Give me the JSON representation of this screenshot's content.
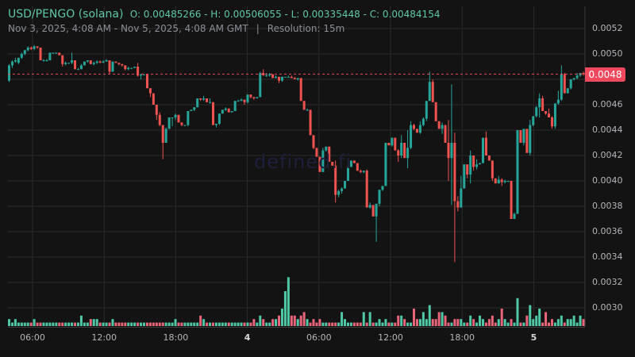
{
  "header": {
    "pair": "USD/PENGO (solana)",
    "ohlc": "O: 0.00485266 - H: 0.00506055 - L: 0.00335448 - C: 0.00484154",
    "range": "Nov 3, 2025, 4:08 AM - Nov 5, 2025, 4:08 AM GMT",
    "separator": "|",
    "resolution": "Resolution: 15m"
  },
  "watermark": "defined.fi",
  "current_price_label": "0.0048",
  "colors": {
    "background": "#131313",
    "up": "#26a69a",
    "down": "#ef5350",
    "vol_up": "#4fc8a6",
    "vol_down": "#e8657a",
    "grid": "#2b2b2b",
    "price_line": "#f0485c",
    "title": "#5fc8a8"
  },
  "chart_data": {
    "type": "candlestick",
    "title": "USD/PENGO (solana)",
    "resolution": "15m",
    "xlabel": "",
    "ylabel": "",
    "ylim": [
      0.00287,
      0.00545
    ],
    "y_ticks": [
      "0.0052",
      "0.0050",
      "0.0048",
      "0.0046",
      "0.0044",
      "0.0042",
      "0.0040",
      "0.0038",
      "0.0036",
      "0.0034",
      "0.0032",
      "0.0030"
    ],
    "x_ticks": [
      {
        "label": "06:00",
        "bold": false
      },
      {
        "label": "12:00",
        "bold": false
      },
      {
        "label": "18:00",
        "bold": false
      },
      {
        "label": "4",
        "bold": true
      },
      {
        "label": "06:00",
        "bold": false
      },
      {
        "label": "12:00",
        "bold": false
      },
      {
        "label": "18:00",
        "bold": false
      },
      {
        "label": "5",
        "bold": true
      }
    ],
    "current_price": 0.00484154,
    "grid": true,
    "candles": [
      [
        0.00479,
        0.00492,
        0.00478,
        0.00491
      ],
      [
        0.00491,
        0.00495,
        0.00489,
        0.00494
      ],
      [
        0.00494,
        0.00497,
        0.00493,
        0.00495
      ],
      [
        0.00493,
        0.00497,
        0.00492,
        0.00497
      ],
      [
        0.00497,
        0.00501,
        0.00496,
        0.005
      ],
      [
        0.005,
        0.00503,
        0.00499,
        0.00503
      ],
      [
        0.00503,
        0.00506,
        0.00502,
        0.00505
      ],
      [
        0.00505,
        0.00506,
        0.00503,
        0.00504
      ],
      [
        0.00504,
        0.00507,
        0.00503,
        0.00506
      ],
      [
        0.00506,
        0.00506,
        0.00504,
        0.00505
      ],
      [
        0.00505,
        0.00505,
        0.00495,
        0.00495
      ],
      [
        0.00495,
        0.00496,
        0.00494,
        0.00495
      ],
      [
        0.00495,
        0.00496,
        0.00494,
        0.00495
      ],
      [
        0.00495,
        0.00501,
        0.00495,
        0.00501
      ],
      [
        0.00501,
        0.00501,
        0.005,
        0.00501
      ],
      [
        0.00501,
        0.00501,
        0.005,
        0.00501
      ],
      [
        0.00501,
        0.00501,
        0.00499,
        0.00499
      ],
      [
        0.00499,
        0.00499,
        0.0049,
        0.00492
      ],
      [
        0.00492,
        0.00494,
        0.00491,
        0.00493
      ],
      [
        0.00493,
        0.00493,
        0.00492,
        0.00493
      ],
      [
        0.00493,
        0.00501,
        0.00492,
        0.00495
      ],
      [
        0.00495,
        0.00495,
        0.00488,
        0.00488
      ],
      [
        0.00488,
        0.00489,
        0.00488,
        0.00488
      ],
      [
        0.00488,
        0.00492,
        0.00488,
        0.00491
      ],
      [
        0.00491,
        0.00494,
        0.00491,
        0.00494
      ],
      [
        0.00494,
        0.00495,
        0.00493,
        0.00495
      ],
      [
        0.00495,
        0.00495,
        0.00492,
        0.00492
      ],
      [
        0.00492,
        0.00494,
        0.00491,
        0.00493
      ],
      [
        0.00493,
        0.00495,
        0.00492,
        0.00494
      ],
      [
        0.00494,
        0.00495,
        0.00493,
        0.00493
      ],
      [
        0.00493,
        0.00495,
        0.00493,
        0.00494
      ],
      [
        0.00494,
        0.00496,
        0.00494,
        0.00495
      ],
      [
        0.00495,
        0.00495,
        0.00484,
        0.00486
      ],
      [
        0.00486,
        0.00494,
        0.00486,
        0.00494
      ],
      [
        0.00494,
        0.00494,
        0.00493,
        0.00493
      ],
      [
        0.00493,
        0.00493,
        0.00491,
        0.00492
      ],
      [
        0.00492,
        0.00492,
        0.0049,
        0.00491
      ],
      [
        0.00491,
        0.00491,
        0.00487,
        0.00488
      ],
      [
        0.00488,
        0.0049,
        0.00487,
        0.00489
      ],
      [
        0.00489,
        0.00489,
        0.00488,
        0.00489
      ],
      [
        0.00489,
        0.0049,
        0.00489,
        0.0049
      ],
      [
        0.0049,
        0.00493,
        0.00482,
        0.00483
      ],
      [
        0.00483,
        0.00484,
        0.0048,
        0.00484
      ],
      [
        0.00484,
        0.00484,
        0.00483,
        0.00484
      ],
      [
        0.00484,
        0.00484,
        0.00473,
        0.00473
      ],
      [
        0.00473,
        0.00473,
        0.00466,
        0.00469
      ],
      [
        0.00469,
        0.00469,
        0.0046,
        0.0046
      ],
      [
        0.0046,
        0.0046,
        0.00448,
        0.00452
      ],
      [
        0.00452,
        0.00454,
        0.00443,
        0.00444
      ],
      [
        0.00444,
        0.00444,
        0.00417,
        0.0043
      ],
      [
        0.0043,
        0.00442,
        0.0043,
        0.00441
      ],
      [
        0.00441,
        0.0045,
        0.00441,
        0.0045
      ],
      [
        0.0045,
        0.0045,
        0.00443,
        0.0045
      ],
      [
        0.0045,
        0.00453,
        0.00448,
        0.00452
      ],
      [
        0.00452,
        0.00452,
        0.00446,
        0.00446
      ],
      [
        0.00446,
        0.00446,
        0.00443,
        0.00444
      ],
      [
        0.00444,
        0.00444,
        0.00443,
        0.00444
      ],
      [
        0.00444,
        0.00455,
        0.00443,
        0.00455
      ],
      [
        0.00455,
        0.00456,
        0.00455,
        0.00456
      ],
      [
        0.00456,
        0.00458,
        0.00455,
        0.00458
      ],
      [
        0.00458,
        0.00465,
        0.00458,
        0.00465
      ],
      [
        0.00465,
        0.00465,
        0.00463,
        0.00464
      ],
      [
        0.00464,
        0.00467,
        0.00463,
        0.00465
      ],
      [
        0.00465,
        0.00465,
        0.00462,
        0.00462
      ],
      [
        0.00462,
        0.00465,
        0.00461,
        0.00462
      ],
      [
        0.00462,
        0.00462,
        0.00444,
        0.00444
      ],
      [
        0.00444,
        0.00445,
        0.00442,
        0.00445
      ],
      [
        0.00445,
        0.00453,
        0.00444,
        0.00453
      ],
      [
        0.00453,
        0.00456,
        0.00453,
        0.00456
      ],
      [
        0.00456,
        0.00458,
        0.00455,
        0.00457
      ],
      [
        0.00457,
        0.00457,
        0.00454,
        0.00454
      ],
      [
        0.00454,
        0.00455,
        0.00454,
        0.00455
      ],
      [
        0.00455,
        0.00463,
        0.00455,
        0.00463
      ],
      [
        0.00463,
        0.00464,
        0.00463,
        0.00463
      ],
      [
        0.00463,
        0.00465,
        0.00463,
        0.00464
      ],
      [
        0.00464,
        0.00464,
        0.0046,
        0.00462
      ],
      [
        0.00462,
        0.00468,
        0.00461,
        0.00468
      ],
      [
        0.00468,
        0.00468,
        0.00465,
        0.00466
      ],
      [
        0.00466,
        0.00466,
        0.00464,
        0.00465
      ],
      [
        0.00465,
        0.00466,
        0.00465,
        0.00466
      ],
      [
        0.00466,
        0.00486,
        0.00466,
        0.00485
      ],
      [
        0.00485,
        0.00488,
        0.00484,
        0.00483
      ],
      [
        0.00483,
        0.00485,
        0.00482,
        0.00483
      ],
      [
        0.00483,
        0.00485,
        0.00482,
        0.00484
      ],
      [
        0.00484,
        0.00484,
        0.00481,
        0.00481
      ],
      [
        0.00481,
        0.00483,
        0.00481,
        0.00482
      ],
      [
        0.00482,
        0.00482,
        0.00477,
        0.00479
      ],
      [
        0.00479,
        0.00482,
        0.00478,
        0.00482
      ],
      [
        0.00482,
        0.00482,
        0.00482,
        0.00482
      ],
      [
        0.00482,
        0.00483,
        0.00482,
        0.00482
      ],
      [
        0.00482,
        0.00483,
        0.00481,
        0.00481
      ],
      [
        0.00481,
        0.00482,
        0.0048,
        0.0048
      ],
      [
        0.0048,
        0.00481,
        0.00479,
        0.00481
      ],
      [
        0.00481,
        0.00481,
        0.00463,
        0.00463
      ],
      [
        0.00463,
        0.00463,
        0.00456,
        0.00456
      ],
      [
        0.00456,
        0.00457,
        0.00455,
        0.00456
      ],
      [
        0.00456,
        0.00456,
        0.00436,
        0.00436
      ],
      [
        0.00436,
        0.00436,
        0.00425,
        0.00426
      ],
      [
        0.00426,
        0.00426,
        0.00419,
        0.00419
      ],
      [
        0.00419,
        0.00419,
        0.00407,
        0.00407
      ],
      [
        0.00407,
        0.00426,
        0.00407,
        0.00424
      ],
      [
        0.00424,
        0.00427,
        0.00423,
        0.00427
      ],
      [
        0.00427,
        0.00427,
        0.00415,
        0.00415
      ],
      [
        0.00415,
        0.00415,
        0.00412,
        0.00412
      ],
      [
        0.00412,
        0.00416,
        0.00383,
        0.00389
      ],
      [
        0.00389,
        0.00393,
        0.00387,
        0.00392
      ],
      [
        0.00392,
        0.00395,
        0.0039,
        0.00394
      ],
      [
        0.00394,
        0.004,
        0.00394,
        0.004
      ],
      [
        0.004,
        0.00411,
        0.004,
        0.00411
      ],
      [
        0.00411,
        0.00416,
        0.00411,
        0.00416
      ],
      [
        0.00416,
        0.00416,
        0.00414,
        0.00414
      ],
      [
        0.00414,
        0.00414,
        0.00408,
        0.00408
      ],
      [
        0.00408,
        0.00409,
        0.00406,
        0.00407
      ],
      [
        0.00407,
        0.00408,
        0.00406,
        0.00408
      ],
      [
        0.00408,
        0.00409,
        0.00379,
        0.00379
      ],
      [
        0.00379,
        0.00383,
        0.00378,
        0.00381
      ],
      [
        0.00381,
        0.00381,
        0.00372,
        0.00372
      ],
      [
        0.00372,
        0.00382,
        0.00352,
        0.00382
      ],
      [
        0.00382,
        0.00393,
        0.0038,
        0.00393
      ],
      [
        0.00393,
        0.00396,
        0.00392,
        0.00396
      ],
      [
        0.00396,
        0.0043,
        0.00396,
        0.0043
      ],
      [
        0.0043,
        0.0043,
        0.00428,
        0.00428
      ],
      [
        0.00428,
        0.00434,
        0.00427,
        0.00434
      ],
      [
        0.00434,
        0.00434,
        0.00424,
        0.00424
      ],
      [
        0.00424,
        0.00425,
        0.00415,
        0.0042
      ],
      [
        0.0042,
        0.00436,
        0.00418,
        0.0043
      ],
      [
        0.0043,
        0.0043,
        0.0042,
        0.00418
      ],
      [
        0.00418,
        0.0044,
        0.0041,
        0.00426
      ],
      [
        0.00426,
        0.00447,
        0.00425,
        0.00444
      ],
      [
        0.00444,
        0.00445,
        0.0044,
        0.00441
      ],
      [
        0.00441,
        0.00441,
        0.00438,
        0.00438
      ],
      [
        0.00438,
        0.00447,
        0.00437,
        0.00444
      ],
      [
        0.00444,
        0.0045,
        0.00443,
        0.00449
      ],
      [
        0.00449,
        0.00463,
        0.00447,
        0.00463
      ],
      [
        0.00463,
        0.00486,
        0.00463,
        0.00478
      ],
      [
        0.00478,
        0.0048,
        0.00462,
        0.00462
      ],
      [
        0.00462,
        0.00462,
        0.00447,
        0.00447
      ],
      [
        0.00447,
        0.00447,
        0.00441,
        0.00441
      ],
      [
        0.00441,
        0.00446,
        0.00437,
        0.00444
      ],
      [
        0.00444,
        0.00444,
        0.0043,
        0.0043
      ],
      [
        0.0043,
        0.00448,
        0.004,
        0.00418
      ],
      [
        0.00418,
        0.00476,
        0.00381,
        0.0043
      ],
      [
        0.0043,
        0.00438,
        0.00336,
        0.00384
      ],
      [
        0.00384,
        0.00388,
        0.00376,
        0.00379
      ],
      [
        0.00379,
        0.00404,
        0.00379,
        0.00394
      ],
      [
        0.00394,
        0.00413,
        0.00394,
        0.00413
      ],
      [
        0.00413,
        0.00413,
        0.00402,
        0.00405
      ],
      [
        0.00405,
        0.00424,
        0.00398,
        0.0042
      ],
      [
        0.0042,
        0.0042,
        0.00408,
        0.00411
      ],
      [
        0.00411,
        0.00417,
        0.00409,
        0.00413
      ],
      [
        0.00413,
        0.00414,
        0.00413,
        0.00414
      ],
      [
        0.00414,
        0.00434,
        0.00414,
        0.00434
      ],
      [
        0.00434,
        0.00439,
        0.0042,
        0.0042
      ],
      [
        0.0042,
        0.0042,
        0.00416,
        0.00416
      ],
      [
        0.00416,
        0.00416,
        0.004,
        0.00402
      ],
      [
        0.00402,
        0.00402,
        0.00398,
        0.00398
      ],
      [
        0.00398,
        0.00404,
        0.00398,
        0.00401
      ],
      [
        0.00401,
        0.00402,
        0.00396,
        0.00399
      ],
      [
        0.00399,
        0.00401,
        0.00398,
        0.004
      ],
      [
        0.004,
        0.004,
        0.00399,
        0.004
      ],
      [
        0.004,
        0.004,
        0.0037,
        0.0037
      ],
      [
        0.0037,
        0.00375,
        0.0037,
        0.00374
      ],
      [
        0.00374,
        0.0044,
        0.00374,
        0.0044
      ],
      [
        0.0044,
        0.0044,
        0.0043,
        0.0043
      ],
      [
        0.0043,
        0.00441,
        0.00428,
        0.00441
      ],
      [
        0.00441,
        0.00441,
        0.00425,
        0.00422
      ],
      [
        0.00422,
        0.00448,
        0.0042,
        0.00444
      ],
      [
        0.00444,
        0.00451,
        0.00443,
        0.00451
      ],
      [
        0.00451,
        0.00459,
        0.0045,
        0.00458
      ],
      [
        0.00458,
        0.00469,
        0.0045,
        0.00465
      ],
      [
        0.00465,
        0.00467,
        0.00455,
        0.00455
      ],
      [
        0.00455,
        0.00455,
        0.00452,
        0.00453
      ],
      [
        0.00453,
        0.00457,
        0.00451,
        0.0045
      ],
      [
        0.0045,
        0.00451,
        0.00441,
        0.00443
      ],
      [
        0.00443,
        0.00461,
        0.00441,
        0.00461
      ],
      [
        0.00461,
        0.00471,
        0.0046,
        0.00464
      ],
      [
        0.00464,
        0.00491,
        0.00463,
        0.00484
      ],
      [
        0.00484,
        0.00485,
        0.00469,
        0.00469
      ],
      [
        0.00469,
        0.00473,
        0.00469,
        0.00473
      ],
      [
        0.00473,
        0.0048,
        0.00472,
        0.0048
      ],
      [
        0.0048,
        0.00481,
        0.00479,
        0.00481
      ],
      [
        0.00481,
        0.00485,
        0.0048,
        0.00483
      ],
      [
        0.00483,
        0.00485,
        0.00482,
        0.00485
      ],
      [
        0.00485,
        0.00486,
        0.00483,
        0.00484
      ]
    ],
    "volume": [
      2,
      1,
      2,
      1,
      1,
      1,
      1,
      1,
      2,
      1,
      1,
      1,
      1,
      1,
      1,
      1,
      1,
      1,
      1,
      1,
      1,
      1,
      1,
      3,
      1,
      1,
      2,
      2,
      2,
      1,
      1,
      1,
      1,
      2,
      1,
      1,
      1,
      1,
      1,
      1,
      1,
      1,
      1,
      1,
      1,
      1,
      1,
      1,
      1,
      1,
      1,
      1,
      1,
      2,
      1,
      1,
      1,
      1,
      1,
      1,
      1,
      3,
      2,
      1,
      1,
      1,
      1,
      1,
      1,
      1,
      1,
      1,
      1,
      1,
      1,
      1,
      1,
      1,
      2,
      1,
      3,
      2,
      1,
      1,
      2,
      2,
      3,
      5,
      10,
      14,
      3,
      3,
      2,
      3,
      4,
      2,
      1,
      2,
      1,
      2,
      1,
      1,
      1,
      1,
      1,
      1,
      4,
      2,
      1,
      1,
      1,
      1,
      1,
      4,
      1,
      4,
      1,
      1,
      2,
      1,
      2,
      1,
      1,
      1,
      3,
      3,
      2,
      1,
      1,
      5,
      2,
      2,
      4,
      2,
      6,
      2,
      2,
      4,
      4,
      3,
      1,
      1,
      2,
      2,
      2,
      1,
      1,
      3,
      2,
      1,
      3,
      2,
      1,
      2,
      3,
      1,
      2,
      5,
      2,
      1,
      2,
      1,
      8,
      1,
      1,
      3,
      6,
      2,
      3,
      5,
      1,
      4,
      1,
      2,
      1,
      2,
      3,
      1,
      2,
      2,
      3,
      1,
      3,
      2,
      1,
      2,
      2,
      1,
      1,
      1,
      2,
      1
    ]
  }
}
